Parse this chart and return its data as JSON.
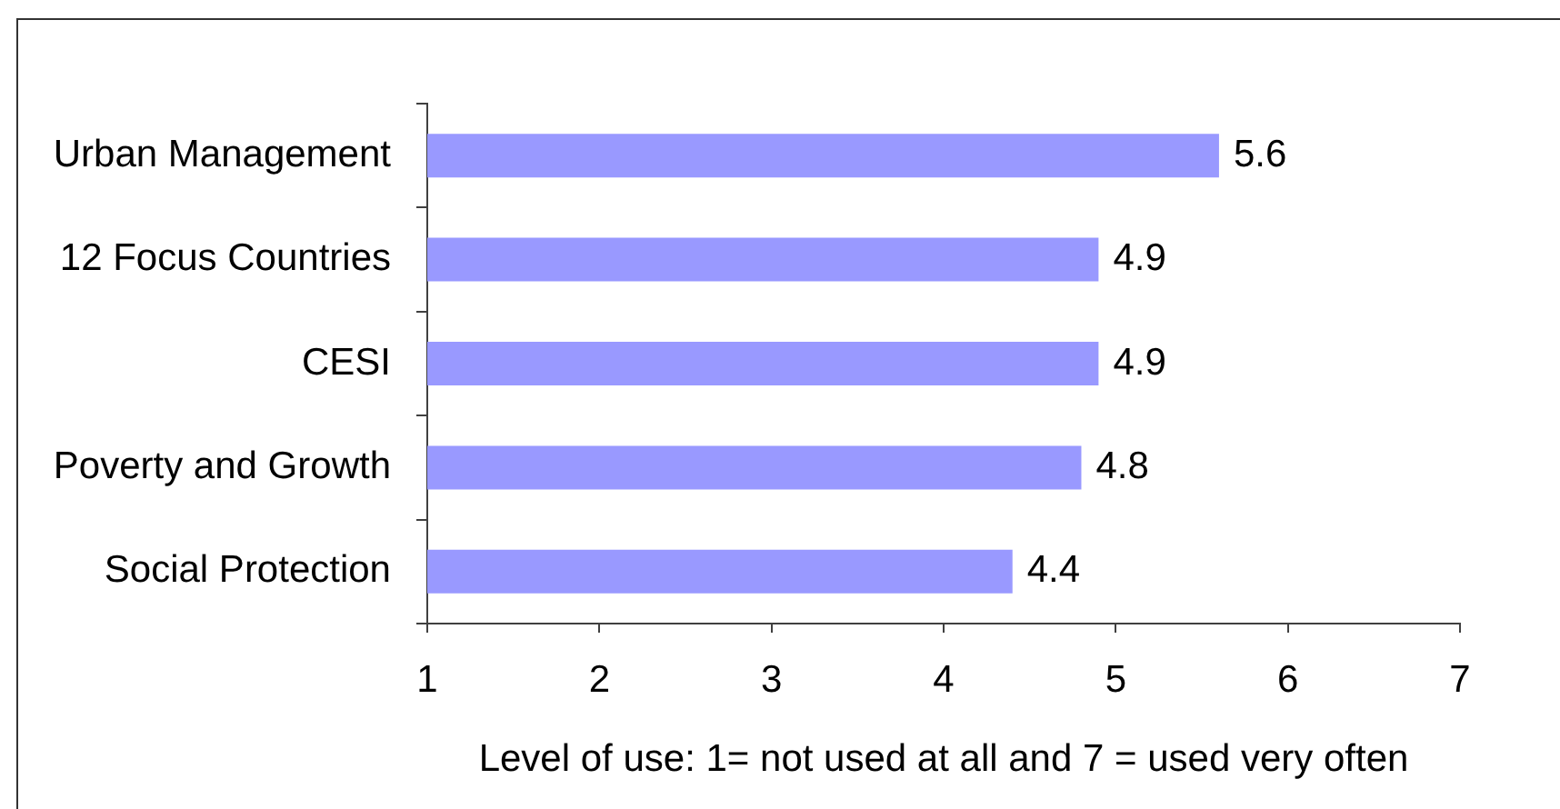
{
  "chart_data": {
    "type": "bar",
    "orientation": "horizontal",
    "categories": [
      "Urban Management",
      "12 Focus Countries",
      "CESI",
      "Poverty and Growth",
      "Social Protection"
    ],
    "values": [
      5.6,
      4.9,
      4.9,
      4.8,
      4.4
    ],
    "color": "#9999ff",
    "xlim": [
      1,
      7
    ],
    "xticks": [
      1,
      2,
      3,
      4,
      5,
      6,
      7
    ],
    "xlabel": "Level of use: 1= not used at all and 7 = used very often",
    "data_labels": true
  }
}
